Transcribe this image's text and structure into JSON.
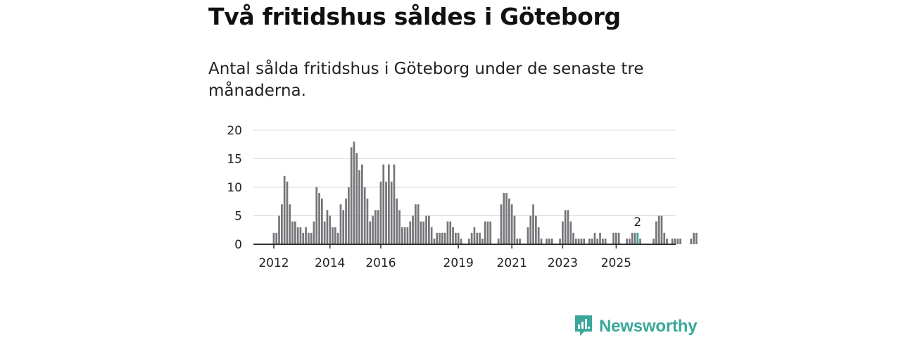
{
  "title": "Två fritidshus såldes i Göteborg",
  "subtitle": "Antal sålda fritidshus i Göteborg under de senaste tre månaderna.",
  "brand": {
    "name": "Newsworthy",
    "icon": "newsworthy-logo-icon",
    "color": "#3aa79a"
  },
  "chart_data": {
    "type": "bar",
    "title": "Två fritidshus såldes i Göteborg",
    "xlabel": "",
    "ylabel": "",
    "ylim": [
      0,
      20
    ],
    "y_ticks": [
      0,
      5,
      10,
      15,
      20
    ],
    "x_ticks": [
      "2012",
      "2014",
      "2016",
      "2019",
      "2021",
      "2023",
      "2025"
    ],
    "x_tick_indices": [
      2,
      23,
      42,
      71,
      91,
      110,
      130
    ],
    "grid": true,
    "bar_color": "#76767a",
    "highlight_color": "#35a39a",
    "highlight_index": 138,
    "highlight_label": "2",
    "values": [
      0,
      0,
      2,
      2,
      5,
      7,
      12,
      11,
      7,
      4,
      4,
      3,
      3,
      2,
      3,
      2,
      2,
      4,
      10,
      9,
      8,
      4,
      6,
      5,
      3,
      3,
      2,
      7,
      6,
      8,
      10,
      17,
      18,
      16,
      13,
      14,
      10,
      8,
      4,
      5,
      6,
      6,
      11,
      14,
      11,
      14,
      11,
      14,
      8,
      6,
      3,
      3,
      3,
      4,
      5,
      7,
      7,
      4,
      4,
      5,
      5,
      3,
      1,
      2,
      2,
      2,
      2,
      4,
      4,
      3,
      2,
      2,
      1,
      0,
      0,
      1,
      2,
      3,
      2,
      2,
      1,
      4,
      4,
      4,
      0,
      0,
      1,
      7,
      9,
      9,
      8,
      7,
      5,
      1,
      1,
      0,
      0,
      3,
      5,
      7,
      5,
      3,
      1,
      0,
      1,
      1,
      1,
      0,
      0,
      1,
      4,
      6,
      6,
      4,
      2,
      1,
      1,
      1,
      1,
      0,
      1,
      1,
      2,
      1,
      2,
      1,
      1,
      0,
      0,
      2,
      2,
      2,
      0,
      0,
      1,
      1,
      2,
      2,
      2,
      1,
      0,
      0,
      0,
      0,
      1,
      4,
      5,
      5,
      2,
      1,
      0,
      1,
      1,
      1,
      1,
      0,
      0,
      0,
      1,
      2,
      2
    ]
  }
}
